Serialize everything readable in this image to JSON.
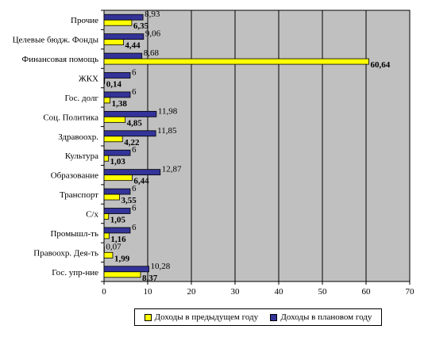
{
  "chart_data": {
    "type": "bar",
    "orientation": "horizontal",
    "categories": [
      "Прочие",
      "Целевые бюдж. Фонды",
      "Финансовая помощь",
      "ЖКХ",
      "Гос. долг",
      "Соц. Политика",
      "Здравоохр.",
      "Культура",
      "Образование",
      "Транспорт",
      "С/х",
      "Промышл-ть",
      "Правоохр. Дея-ть",
      "Гос. упр-ние"
    ],
    "category_labels": [
      "Прочие",
      "Целевые бюдж. Фонды",
      "Финансовая помощь",
      "ЖКХ",
      "Гос. долг",
      "Соц. Политика",
      "Здравоохр.",
      "Культура",
      "Образование",
      "Транспорт",
      "С/х",
      "Промышл-ть",
      "Правоохр. Дея-ть",
      "Гос. упр-ние"
    ],
    "series": [
      {
        "name": "Доходы в предыдущем году",
        "color": "#ffff00",
        "values": [
          6.35,
          4.44,
          60.64,
          0.14,
          1.38,
          4.85,
          4.22,
          1.03,
          6.44,
          3.55,
          1.05,
          1.16,
          1.99,
          8.37
        ],
        "labels": [
          "6,35",
          "4,44",
          "60,64",
          "0,14",
          "1,38",
          "4,85",
          "4,22",
          "1,03",
          "6,44",
          "3,55",
          "1,05",
          "1,16",
          "1,99",
          "8,37"
        ]
      },
      {
        "name": "Доходы в плановом году",
        "color": "#333399",
        "values": [
          8.93,
          9.06,
          8.68,
          6,
          6,
          11.98,
          11.85,
          6,
          12.87,
          6,
          6,
          6,
          0.07,
          10.28
        ],
        "labels": [
          "8,93",
          "9,06",
          "8,68",
          "6",
          "6",
          "11,98",
          "11,85",
          "6",
          "12,87",
          "6",
          "6",
          "6",
          "0,07",
          "10,28"
        ]
      }
    ],
    "xlim": [
      0,
      70
    ],
    "xticks": [
      0,
      10,
      20,
      30,
      40,
      50,
      60,
      70
    ],
    "xtick_labels": [
      "0",
      "10",
      "20",
      "30",
      "40",
      "50",
      "60",
      "70"
    ],
    "grid": "vertical",
    "plot_background": "#c0c0c0",
    "legend_position": "bottom",
    "title": "",
    "xlabel": "",
    "ylabel": ""
  }
}
